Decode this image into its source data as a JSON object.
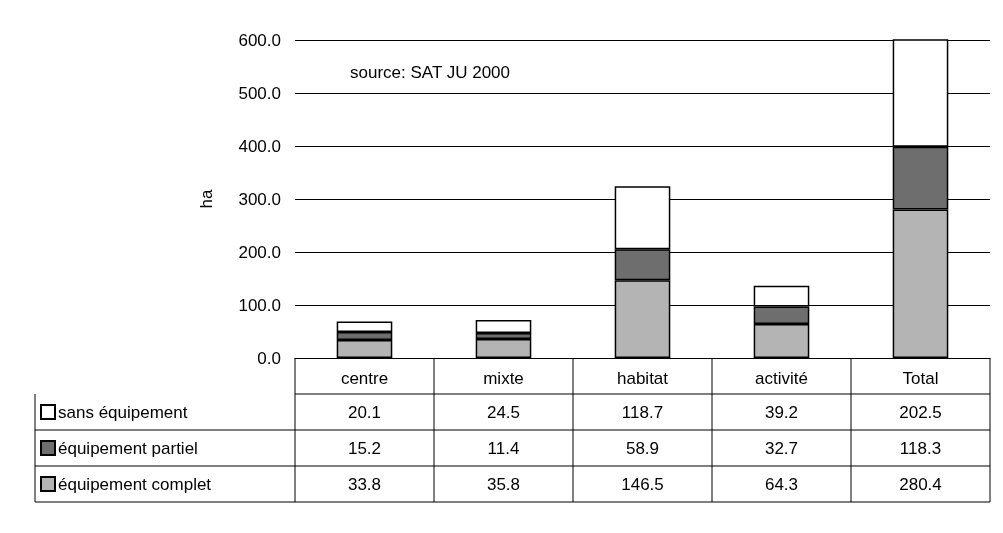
{
  "chart_data": {
    "type": "bar",
    "stacked": true,
    "ylabel": "ha",
    "annotations": [
      "source: SAT JU 2000"
    ],
    "categories": [
      "centre",
      "mixte",
      "habitat",
      "activité",
      "Total"
    ],
    "series": [
      {
        "name": "équipement complet",
        "color": "#b4b4b4",
        "values": [
          33.8,
          35.8,
          146.5,
          64.3,
          280.4
        ]
      },
      {
        "name": "équipement partiel",
        "color": "#6e6e6e",
        "values": [
          15.2,
          11.4,
          58.9,
          32.7,
          118.3
        ]
      },
      {
        "name": "sans équipement",
        "color": "#ffffff",
        "values": [
          20.1,
          24.5,
          118.7,
          39.2,
          202.5
        ]
      }
    ],
    "ylim": [
      0,
      600
    ],
    "yticks": [
      {
        "value": 0,
        "label": "0.0"
      },
      {
        "value": 100,
        "label": "100.0"
      },
      {
        "value": 200,
        "label": "200.0"
      },
      {
        "value": 300,
        "label": "300.0"
      },
      {
        "value": 400,
        "label": "400.0"
      },
      {
        "value": 500,
        "label": "500.0"
      },
      {
        "value": 600,
        "label": "600.0"
      }
    ],
    "grid": "y",
    "legend": "bottom left",
    "data_labels": true
  }
}
